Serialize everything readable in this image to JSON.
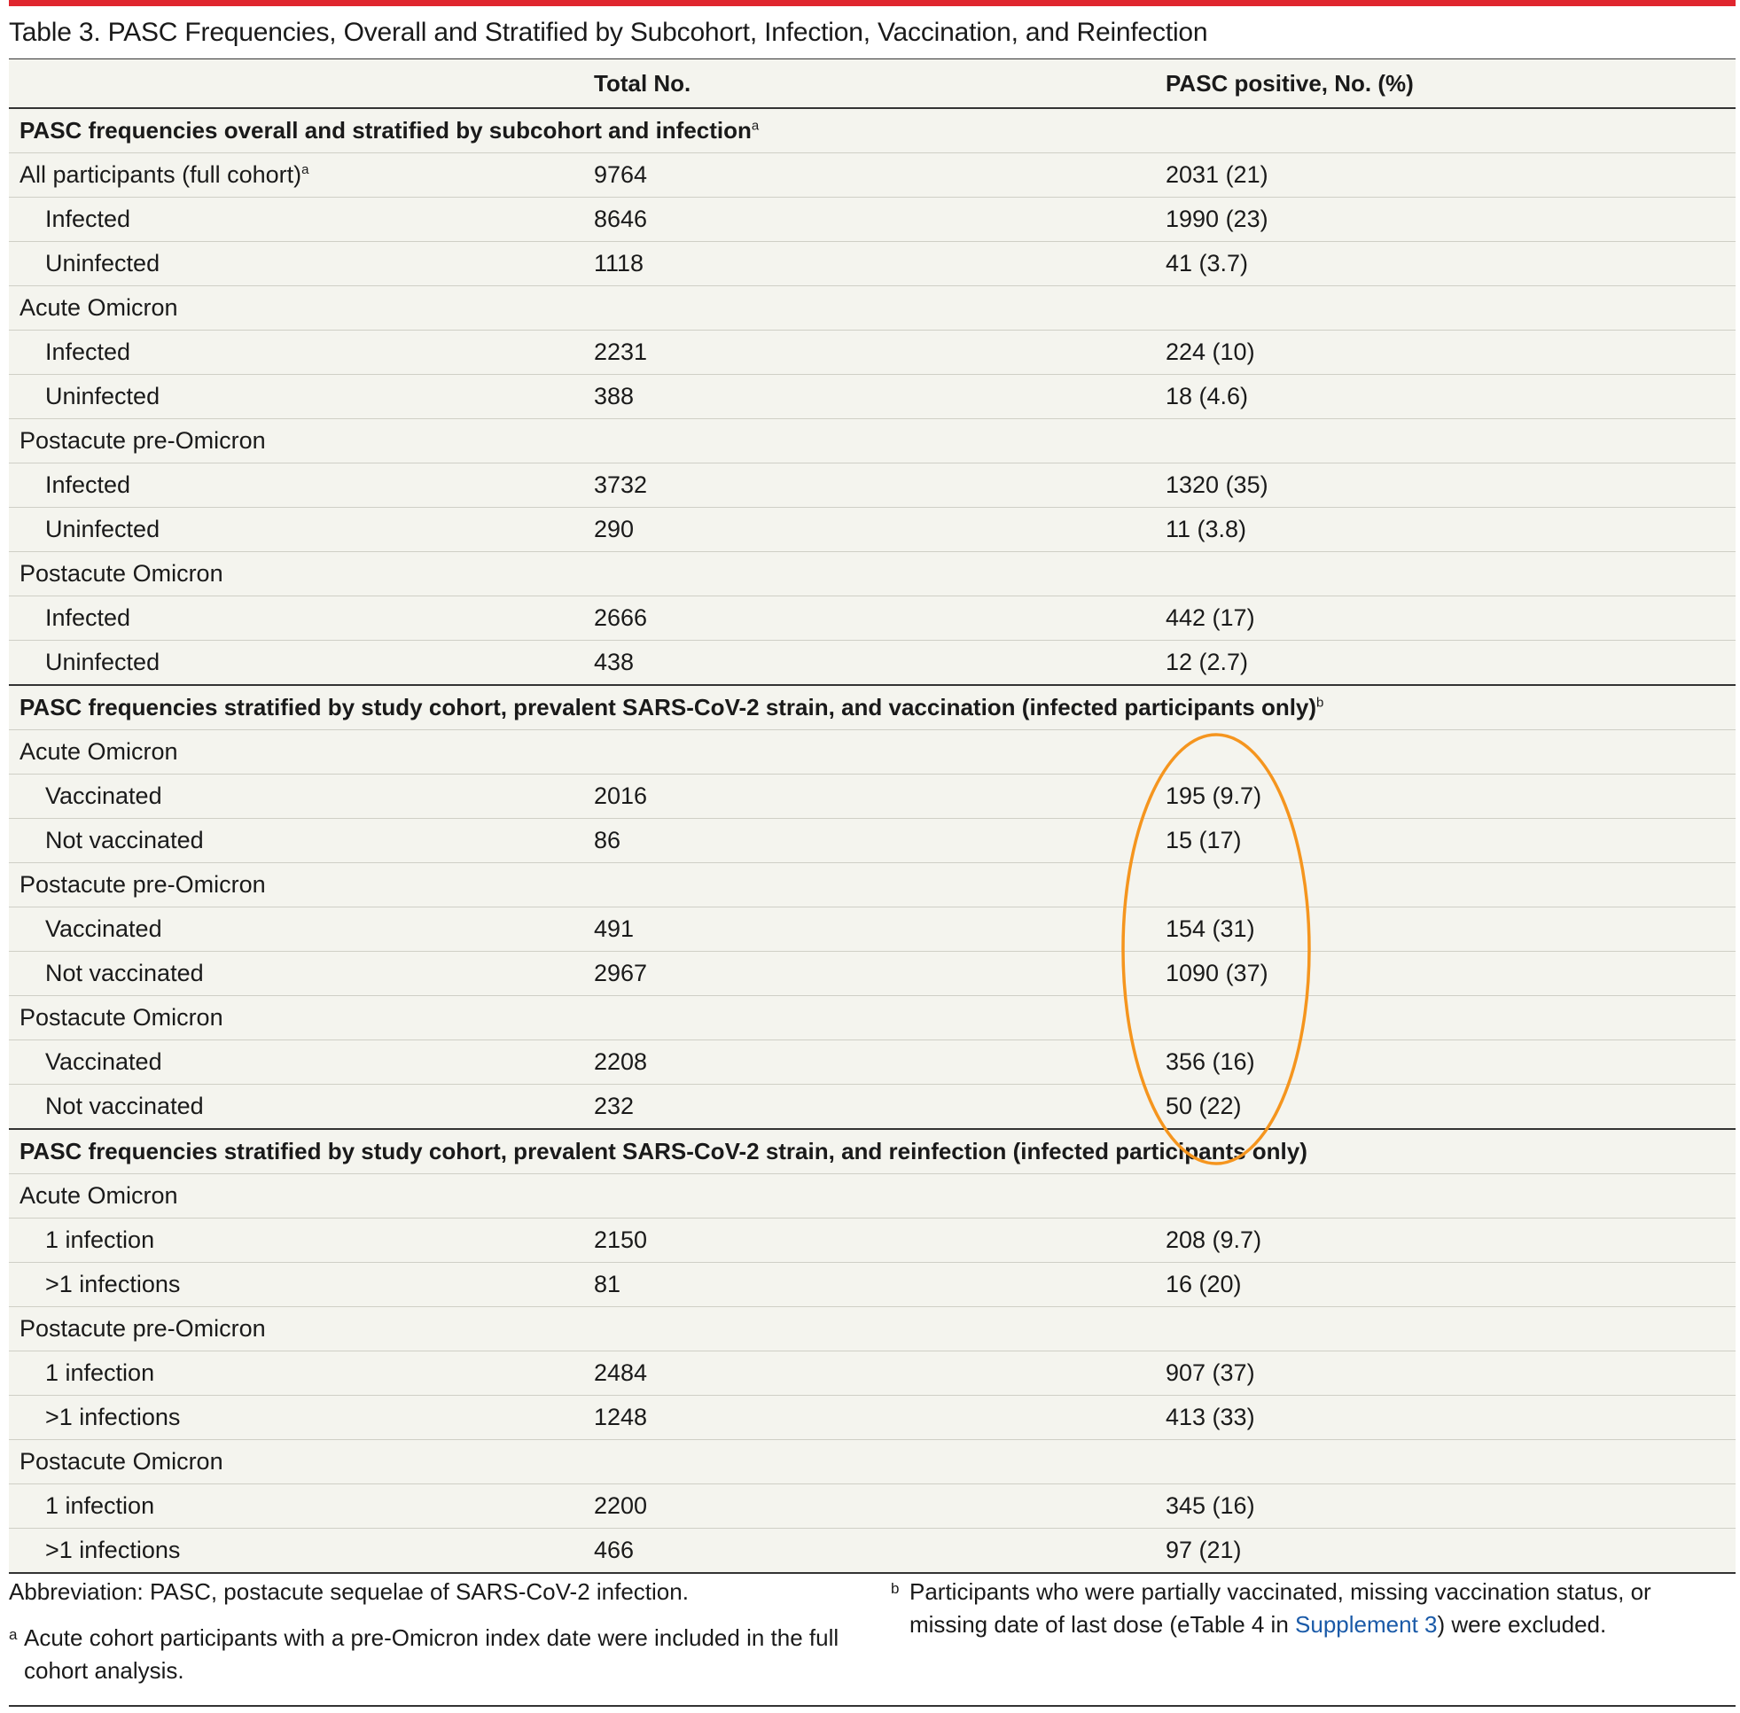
{
  "title": "Table 3. PASC Frequencies, Overall and Stratified by Subcohort, Infection, Vaccination, and Reinfection",
  "columns": [
    "",
    "Total No.",
    "PASC positive, No. (%)"
  ],
  "rows": [
    {
      "label": "PASC frequencies overall and stratified by subcohort and infection",
      "sup": "a",
      "total": "",
      "pasc": "",
      "kind": "section"
    },
    {
      "label": "All participants (full cohort)",
      "sup": "a",
      "total": "9764",
      "pasc": "2031 (21)",
      "kind": "group"
    },
    {
      "label": "Infected",
      "sup": "",
      "total": "8646",
      "pasc": "1990 (23)",
      "kind": "indent"
    },
    {
      "label": "Uninfected",
      "sup": "",
      "total": "1118",
      "pasc": "41 (3.7)",
      "kind": "indent"
    },
    {
      "label": "Acute Omicron",
      "sup": "",
      "total": "",
      "pasc": "",
      "kind": "group"
    },
    {
      "label": "Infected",
      "sup": "",
      "total": "2231",
      "pasc": "224 (10)",
      "kind": "indent"
    },
    {
      "label": "Uninfected",
      "sup": "",
      "total": "388",
      "pasc": "18 (4.6)",
      "kind": "indent"
    },
    {
      "label": "Postacute pre-Omicron",
      "sup": "",
      "total": "",
      "pasc": "",
      "kind": "group"
    },
    {
      "label": "Infected",
      "sup": "",
      "total": "3732",
      "pasc": "1320 (35)",
      "kind": "indent"
    },
    {
      "label": "Uninfected",
      "sup": "",
      "total": "290",
      "pasc": "11 (3.8)",
      "kind": "indent"
    },
    {
      "label": "Postacute Omicron",
      "sup": "",
      "total": "",
      "pasc": "",
      "kind": "group"
    },
    {
      "label": "Infected",
      "sup": "",
      "total": "2666",
      "pasc": "442 (17)",
      "kind": "indent"
    },
    {
      "label": "Uninfected",
      "sup": "",
      "total": "438",
      "pasc": "12 (2.7)",
      "kind": "indent"
    },
    {
      "label": "PASC frequencies stratified by study cohort, prevalent SARS-CoV-2 strain, and vaccination (infected participants only)",
      "sup": "b",
      "total": "",
      "pasc": "",
      "kind": "section"
    },
    {
      "label": "Acute Omicron",
      "sup": "",
      "total": "",
      "pasc": "",
      "kind": "group"
    },
    {
      "label": "Vaccinated",
      "sup": "",
      "total": "2016",
      "pasc": "195 (9.7)",
      "kind": "indent"
    },
    {
      "label": "Not vaccinated",
      "sup": "",
      "total": "86",
      "pasc": "15 (17)",
      "kind": "indent"
    },
    {
      "label": "Postacute pre-Omicron",
      "sup": "",
      "total": "",
      "pasc": "",
      "kind": "group"
    },
    {
      "label": "Vaccinated",
      "sup": "",
      "total": "491",
      "pasc": "154 (31)",
      "kind": "indent"
    },
    {
      "label": "Not vaccinated",
      "sup": "",
      "total": "2967",
      "pasc": "1090 (37)",
      "kind": "indent"
    },
    {
      "label": "Postacute Omicron",
      "sup": "",
      "total": "",
      "pasc": "",
      "kind": "group"
    },
    {
      "label": "Vaccinated",
      "sup": "",
      "total": "2208",
      "pasc": "356 (16)",
      "kind": "indent"
    },
    {
      "label": "Not vaccinated",
      "sup": "",
      "total": "232",
      "pasc": "50 (22)",
      "kind": "indent"
    },
    {
      "label": "PASC frequencies stratified by study cohort, prevalent SARS-CoV-2 strain, and reinfection (infected participants only)",
      "sup": "",
      "total": "",
      "pasc": "",
      "kind": "section"
    },
    {
      "label": "Acute Omicron",
      "sup": "",
      "total": "",
      "pasc": "",
      "kind": "group"
    },
    {
      "label": "1 infection",
      "sup": "",
      "total": "2150",
      "pasc": "208 (9.7)",
      "kind": "indent"
    },
    {
      "label": ">1 infections",
      "sup": "",
      "total": "81",
      "pasc": "16 (20)",
      "kind": "indent"
    },
    {
      "label": "Postacute pre-Omicron",
      "sup": "",
      "total": "",
      "pasc": "",
      "kind": "group"
    },
    {
      "label": "1 infection",
      "sup": "",
      "total": "2484",
      "pasc": "907 (37)",
      "kind": "indent"
    },
    {
      "label": ">1 infections",
      "sup": "",
      "total": "1248",
      "pasc": "413 (33)",
      "kind": "indent"
    },
    {
      "label": "Postacute Omicron",
      "sup": "",
      "total": "",
      "pasc": "",
      "kind": "group"
    },
    {
      "label": "1 infection",
      "sup": "",
      "total": "2200",
      "pasc": "345 (16)",
      "kind": "indent"
    },
    {
      "label": ">1 infections",
      "sup": "",
      "total": "466",
      "pasc": "97 (21)",
      "kind": "indent"
    }
  ],
  "footnotes": {
    "abbreviation": "Abbreviation: PASC, postacute sequelae of SARS-CoV-2 infection.",
    "a_mark": "a",
    "a_text": "Acute cohort participants with a pre-Omicron index date were included in the full cohort analysis.",
    "b_mark": "b",
    "b_text_before": "Participants who were partially vaccinated, missing vaccination status, or missing date of last dose (eTable 4 in ",
    "b_link": "Supplement 3",
    "b_text_after": ") were excluded."
  },
  "colors": {
    "accent_bar": "#e0262e",
    "row_background": "#f4f4ee",
    "highlight_ellipse": "#f5951e",
    "link": "#1a5aa8"
  }
}
